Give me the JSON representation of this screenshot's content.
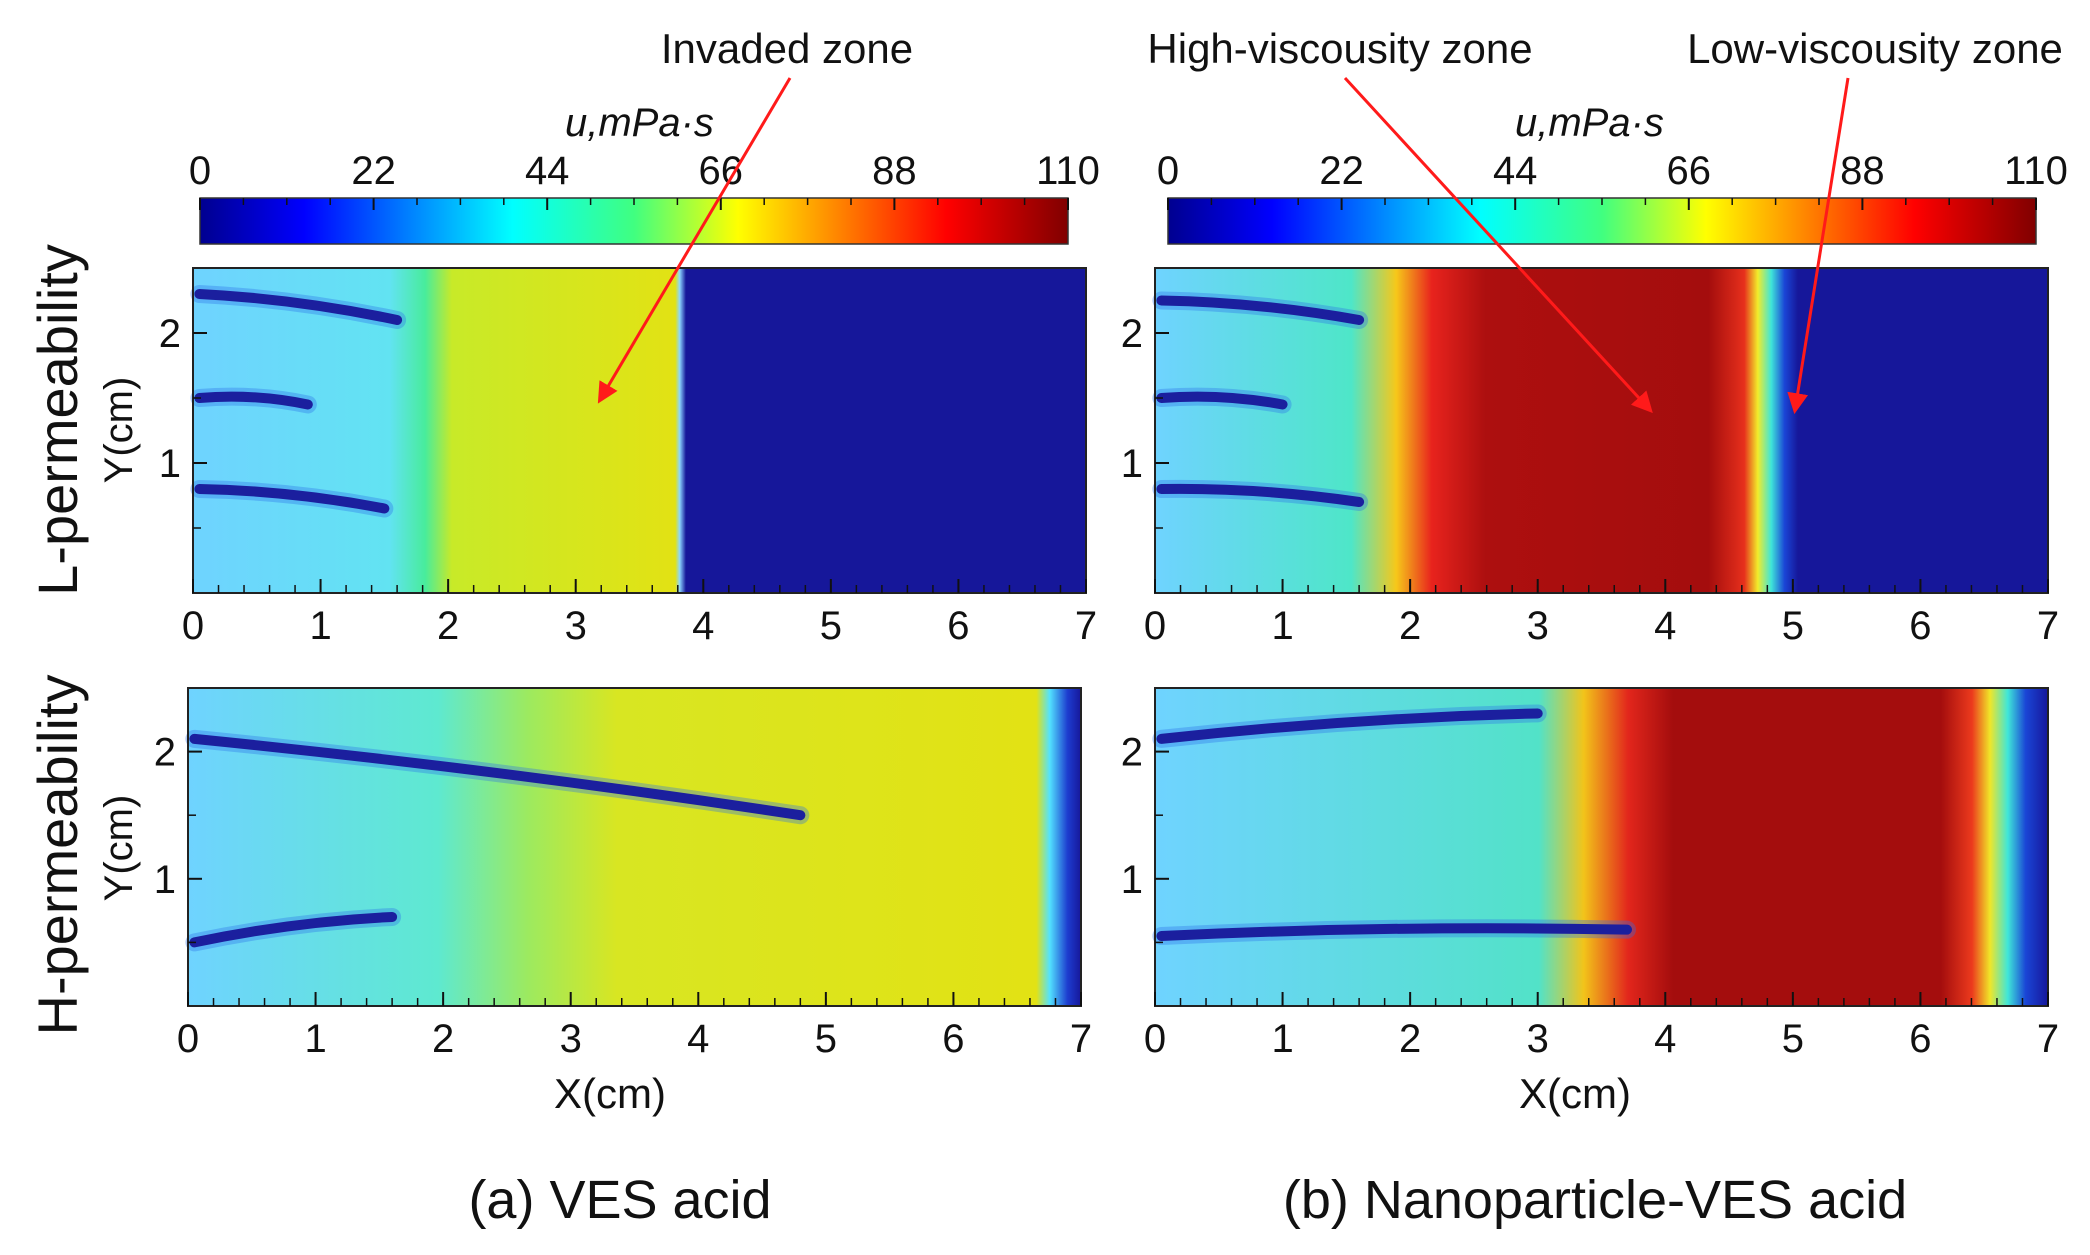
{
  "figure": {
    "row_labels": [
      "L-permeability",
      "H-permeability"
    ],
    "captions": [
      "(a) VES acid",
      "(b) Nanoparticle-VES acid"
    ]
  },
  "colorbar": {
    "label": "u,mPa·s",
    "ticks": [
      "0",
      "22",
      "44",
      "66",
      "88",
      "110"
    ],
    "range": [
      0,
      110
    ]
  },
  "annotations": [
    {
      "text": "Invaded zone",
      "panel": "L-VES",
      "points_to": "yellow plateau near x=3.2 cm"
    },
    {
      "text": "High-viscousity zone",
      "panel": "L-NP",
      "points_to": "dark red zone near x=4 cm"
    },
    {
      "text": "Low-viscousity zone",
      "panel": "L-NP",
      "points_to": "blue front near x=5 cm"
    }
  ],
  "chart_data": [
    {
      "id": "L-VES",
      "type": "heatmap",
      "title": "",
      "xlabel": "",
      "ylabel": "Y(cm)",
      "xlim": [
        0,
        7
      ],
      "ylim": [
        0,
        2.5
      ],
      "xticks": [
        "0",
        "1",
        "2",
        "3",
        "4",
        "5",
        "6",
        "7"
      ],
      "yticks": [
        "1",
        "2"
      ],
      "viscosity_profile_x_mPa_s": [
        [
          0,
          30
        ],
        [
          1.7,
          30
        ],
        [
          2.0,
          58
        ],
        [
          3.85,
          62
        ],
        [
          3.95,
          0
        ],
        [
          7,
          0
        ]
      ],
      "wormholes": [
        {
          "from": [
            0.05,
            2.3
          ],
          "to": [
            1.6,
            2.1
          ]
        },
        {
          "from": [
            0.05,
            1.5
          ],
          "to": [
            0.9,
            1.45
          ]
        },
        {
          "from": [
            0.05,
            0.8
          ],
          "to": [
            1.5,
            0.65
          ]
        }
      ]
    },
    {
      "id": "L-NP",
      "type": "heatmap",
      "title": "",
      "xlabel": "",
      "ylabel": "Y(cm)",
      "xlim": [
        0,
        7
      ],
      "ylim": [
        0,
        2.5
      ],
      "xticks": [
        "0",
        "1",
        "2",
        "3",
        "4",
        "5",
        "6",
        "7"
      ],
      "yticks": [
        "1",
        "2"
      ],
      "viscosity_profile_x_mPa_s": [
        [
          0,
          30
        ],
        [
          1.8,
          40
        ],
        [
          2.4,
          100
        ],
        [
          4.5,
          108
        ],
        [
          4.8,
          40
        ],
        [
          4.95,
          0
        ],
        [
          7,
          0
        ]
      ],
      "wormholes": [
        {
          "from": [
            0.05,
            2.25
          ],
          "to": [
            1.6,
            2.1
          ]
        },
        {
          "from": [
            0.05,
            1.5
          ],
          "to": [
            1.0,
            1.45
          ]
        },
        {
          "from": [
            0.05,
            0.8
          ],
          "to": [
            1.6,
            0.7
          ]
        }
      ]
    },
    {
      "id": "H-VES",
      "type": "heatmap",
      "title": "",
      "xlabel": "X(cm)",
      "ylabel": "Y(cm)",
      "xlim": [
        0,
        7
      ],
      "ylim": [
        0,
        2.5
      ],
      "xticks": [
        "0",
        "1",
        "2",
        "3",
        "4",
        "5",
        "6",
        "7"
      ],
      "yticks": [
        "1",
        "2"
      ],
      "viscosity_profile_x_mPa_s": [
        [
          0,
          30
        ],
        [
          2.0,
          45
        ],
        [
          3.0,
          58
        ],
        [
          6.7,
          62
        ],
        [
          6.95,
          0
        ],
        [
          7,
          0
        ]
      ],
      "wormholes": [
        {
          "from": [
            0.05,
            2.1
          ],
          "to": [
            4.8,
            1.5
          ]
        },
        {
          "from": [
            0.05,
            0.5
          ],
          "to": [
            1.6,
            0.7
          ]
        }
      ]
    },
    {
      "id": "H-NP",
      "type": "heatmap",
      "title": "",
      "xlabel": "X(cm)",
      "ylabel": "Y(cm)",
      "xlim": [
        0,
        7
      ],
      "ylim": [
        0,
        2.5
      ],
      "xticks": [
        "0",
        "1",
        "2",
        "3",
        "4",
        "5",
        "6",
        "7"
      ],
      "yticks": [
        "1",
        "2"
      ],
      "viscosity_profile_x_mPa_s": [
        [
          0,
          30
        ],
        [
          3.2,
          40
        ],
        [
          4.0,
          100
        ],
        [
          6.3,
          108
        ],
        [
          6.6,
          50
        ],
        [
          6.9,
          0
        ],
        [
          7,
          0
        ]
      ],
      "wormholes": [
        {
          "from": [
            0.05,
            2.1
          ],
          "to": [
            3.0,
            2.3
          ]
        },
        {
          "from": [
            0.05,
            0.55
          ],
          "to": [
            3.7,
            0.6
          ]
        }
      ]
    }
  ]
}
